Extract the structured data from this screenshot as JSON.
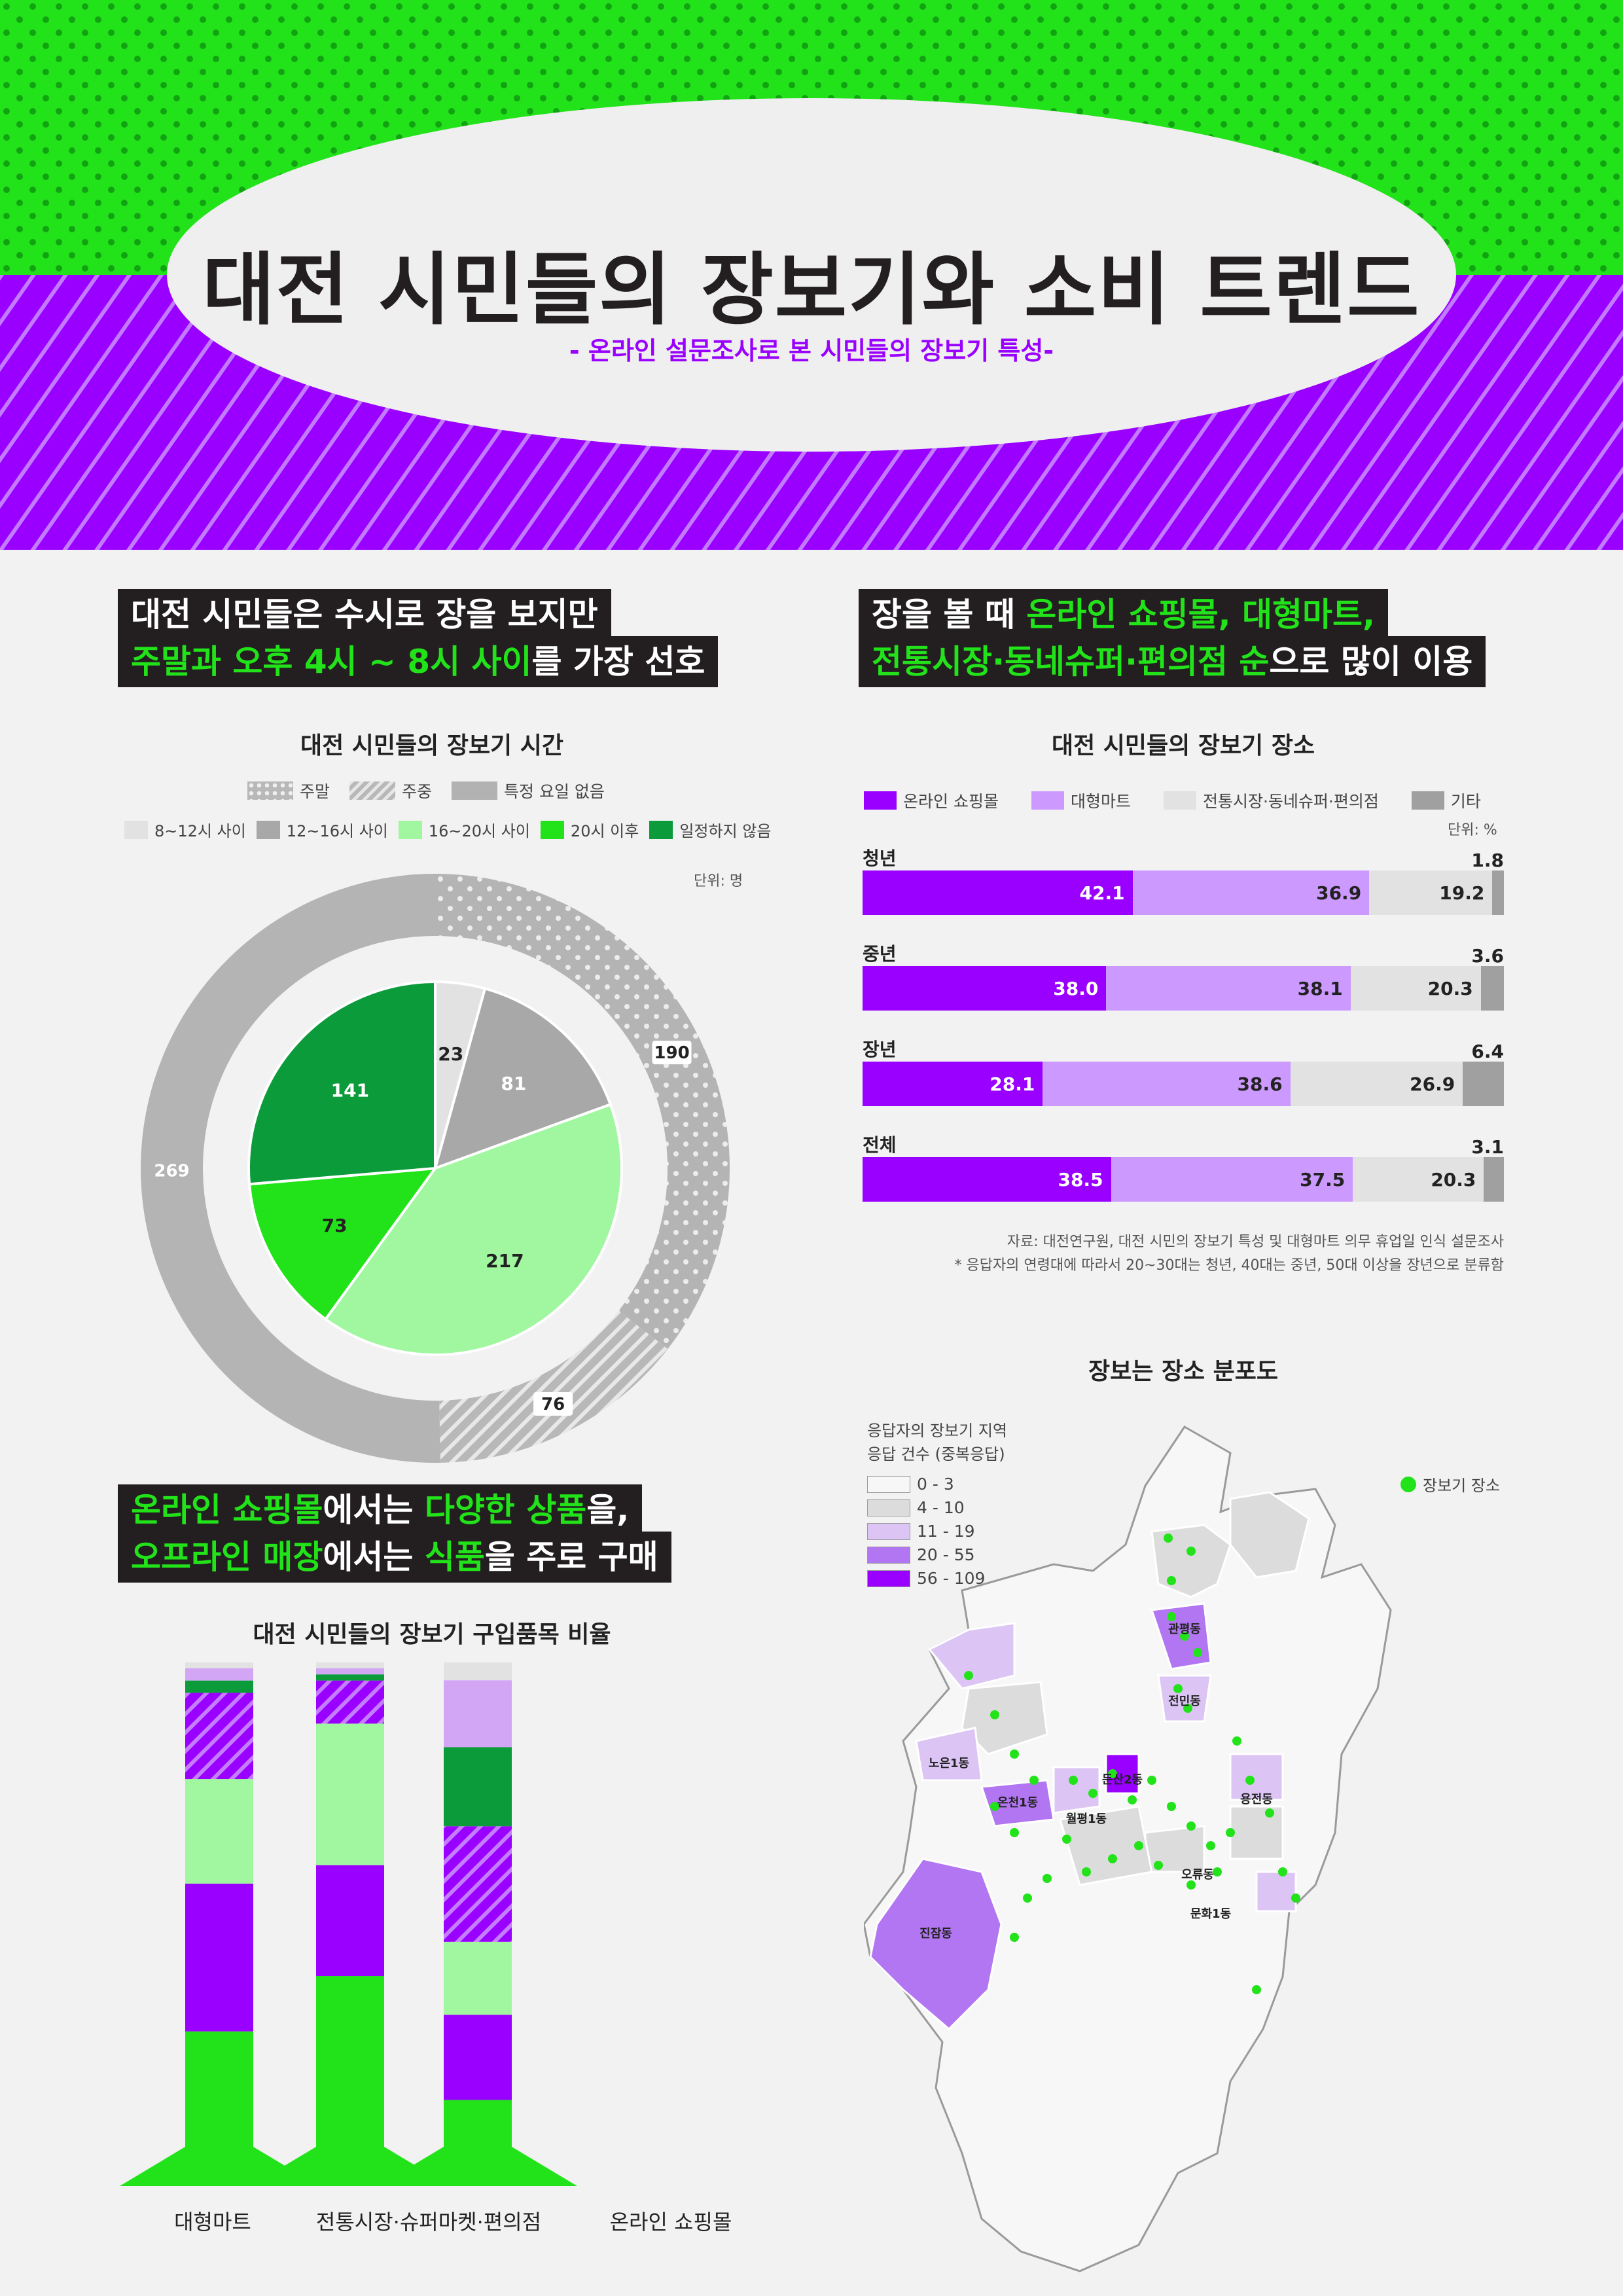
{
  "header": {
    "title": "대전 시민들의 장보기와 소비 트렌드",
    "subtitle": "- 온라인 설문조사로 본 시민들의 장보기 특성-"
  },
  "section1": {
    "headline_line1": "대전 시민들은 수시로 장을 보지만",
    "headline_line2_a": "주말과 오후 4시 ~ 8시 사이",
    "headline_line2_b": "를 가장 선호"
  },
  "section2": {
    "headline_line1_a": "장을 볼 때 ",
    "headline_line1_b": "온라인 쇼핑몰, 대형마트,",
    "headline_line2_a": "전통시장·동네슈퍼·편의점 순",
    "headline_line2_b": "으로 많이 이용"
  },
  "section3": {
    "headline_line1_a": "온라인 쇼핑몰",
    "headline_line1_b": "에서는 ",
    "headline_line1_c": "다양한 상품",
    "headline_line1_d": "을,",
    "headline_line2_a": "오프라인 매장",
    "headline_line2_b": "에서는 ",
    "headline_line2_c": "식품",
    "headline_line2_d": "을 주로 구매"
  },
  "chart_data": [
    {
      "type": "pie",
      "title": "대전 시민들의 장보기 시간",
      "unit": "단위: 명",
      "outer_legend": [
        "주말",
        "주중",
        "특정 요일 없음"
      ],
      "outer_ring": [
        {
          "label": "주말",
          "value": 190
        },
        {
          "label": "주중",
          "value": 76
        },
        {
          "label": "특정 요일 없음",
          "value": 269
        }
      ],
      "inner_legend": [
        "8~12시 사이",
        "12~16시 사이",
        "16~20시 사이",
        "20시 이후",
        "일정하지 않음"
      ],
      "inner_pie": [
        {
          "label": "8~12시 사이",
          "value": 23
        },
        {
          "label": "12~16시 사이",
          "value": 81
        },
        {
          "label": "16~20시 사이",
          "value": 217
        },
        {
          "label": "20시 이후",
          "value": 73
        },
        {
          "label": "일정하지 않음",
          "value": 141
        }
      ]
    },
    {
      "type": "bar",
      "orientation": "horizontal-stacked",
      "title": "대전 시민들의 장보기 장소",
      "unit": "단위: %",
      "legend": [
        "온라인 쇼핑몰",
        "대형마트",
        "전통시장·동네슈퍼·편의점",
        "기타"
      ],
      "categories": [
        "청년",
        "중년",
        "장년",
        "전체"
      ],
      "series": [
        {
          "name": "온라인 쇼핑몰",
          "values": [
            42.1,
            38.0,
            28.1,
            38.5
          ]
        },
        {
          "name": "대형마트",
          "values": [
            36.9,
            38.1,
            38.6,
            37.5
          ]
        },
        {
          "name": "전통시장·동네슈퍼·편의점",
          "values": [
            19.2,
            20.3,
            26.9,
            20.3
          ]
        },
        {
          "name": "기타",
          "values": [
            1.8,
            3.6,
            6.4,
            3.1
          ]
        }
      ],
      "labels": [
        "42.1",
        "36.9",
        "19.2",
        "1.8",
        "38.0",
        "38.1",
        "20.3",
        "3.6",
        "28.1",
        "38.6",
        "26.9",
        "6.4",
        "38.5",
        "37.5",
        "20.3",
        "3.1"
      ],
      "notes": [
        "자료: 대전연구원, 대전 시민의 장보기 특성 및 대형마트 의무 휴업일 인식 설문조사",
        "* 응답자의 연령대에 따라서 20~30대는 청년, 40대는 중년, 50대 이상을 장년으로 분류함"
      ]
    },
    {
      "type": "bar",
      "orientation": "vertical-stacked",
      "title": "대전 시민들의 장보기 구입품목 비율",
      "categories": [
        "대형마트",
        "전통시장·슈퍼마켓·편의점",
        "온라인 쇼핑몰"
      ],
      "segment_colors": [
        "#22e31a",
        "#9900ff",
        "#a0f7a0",
        "#9900ff-hatch",
        "#0b9b3a",
        "#d2a6f5",
        "#e2e2e2",
        "#a8a8a8"
      ],
      "stacks": [
        [
          23,
          24,
          17,
          14,
          2,
          2,
          1,
          1
        ],
        [
          32,
          18,
          23,
          7,
          1,
          1,
          1,
          1
        ],
        [
          12,
          14,
          12,
          19,
          13,
          11,
          3,
          1
        ]
      ]
    },
    {
      "type": "map",
      "title": "장보는 장소 분포도",
      "legend_title_1": "응답자의 장보기 지역",
      "legend_title_2": "응답 건수 (중복응답)",
      "legend_ranges": [
        {
          "label": "0 - 3",
          "color": "#f7f7f7"
        },
        {
          "label": "4 - 10",
          "color": "#dcdcdc"
        },
        {
          "label": "11 - 19",
          "color": "#dcc5f5"
        },
        {
          "label": "20 - 55",
          "color": "#b276f2"
        },
        {
          "label": "56 - 109",
          "color": "#9900ff"
        }
      ],
      "point_legend": "장보기 장소",
      "place_labels": [
        "관평동",
        "전민동",
        "노은1동",
        "온천1동",
        "둔산2동",
        "월평1동",
        "용전동",
        "오류동",
        "문화1동",
        "진잠동"
      ]
    }
  ],
  "colors": {
    "green": "#22e31a",
    "purple": "#9900ff",
    "dark": "#231f20"
  }
}
